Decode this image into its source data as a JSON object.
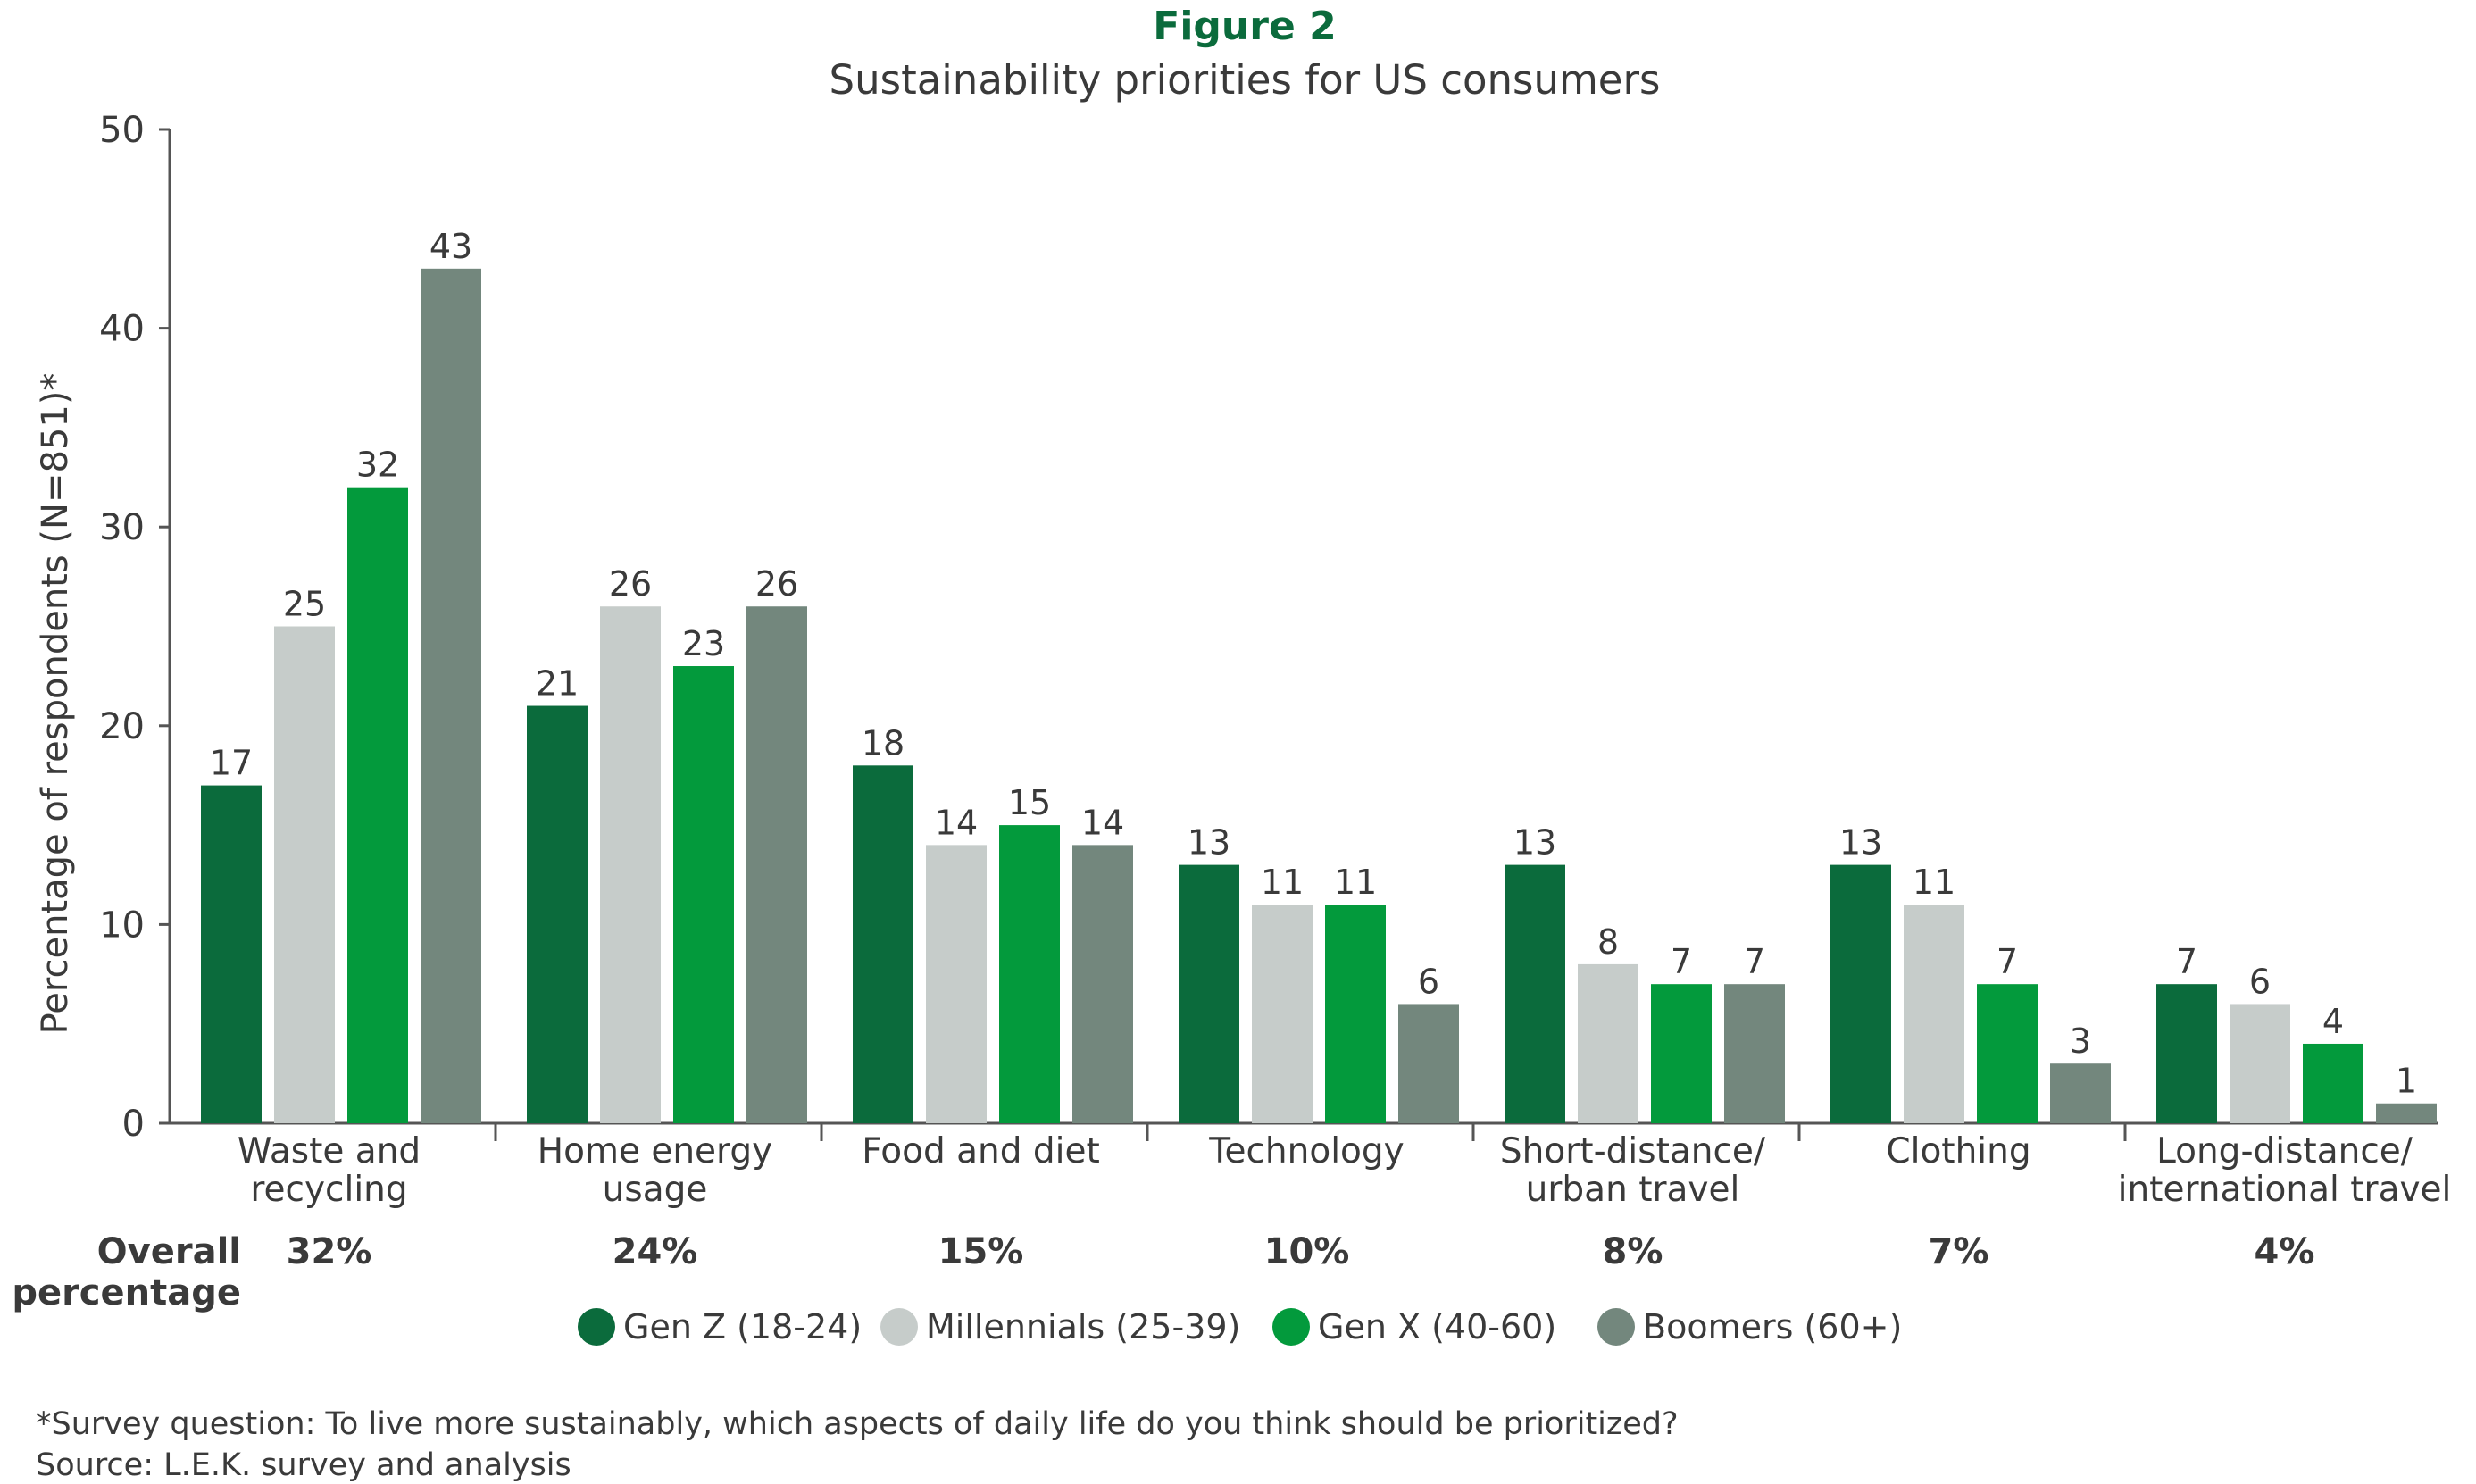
{
  "figure_label": "Figure 2",
  "overall_label_lines": [
    "Overall",
    "percentage"
  ],
  "footnote": "*Survey question: To live more sustainably, which aspects of daily life do you think should be prioritized?",
  "source": "Source: L.E.K. survey and analysis",
  "colors": {
    "gen_z": "#0b6b3c",
    "millennials": "#c6ccca",
    "gen_x": "#039a3c",
    "boomers": "#73877d",
    "axis": "#555555"
  },
  "chart_data": {
    "type": "bar",
    "title": "Sustainability priorities for US consumers",
    "ylabel": "Percentage of respondents (N=851)*",
    "ylim": [
      0,
      50
    ],
    "yticks": [
      0,
      10,
      20,
      30,
      40,
      50
    ],
    "categories": [
      [
        "Waste and",
        "recycling"
      ],
      [
        "Home energy",
        "usage"
      ],
      [
        "Food and diet"
      ],
      [
        "Technology"
      ],
      [
        "Short-distance/",
        "urban travel"
      ],
      [
        "Clothing"
      ],
      [
        "Long-distance/",
        "international travel"
      ]
    ],
    "overall_percentages": [
      "32%",
      "24%",
      "15%",
      "10%",
      "8%",
      "7%",
      "4%"
    ],
    "series": [
      {
        "name": "Gen Z (18-24)",
        "color_key": "gen_z",
        "values": [
          17,
          21,
          18,
          13,
          13,
          13,
          7
        ]
      },
      {
        "name": "Millennials (25-39)",
        "color_key": "millennials",
        "values": [
          25,
          26,
          14,
          11,
          8,
          11,
          6
        ]
      },
      {
        "name": "Gen X (40-60)",
        "color_key": "gen_x",
        "values": [
          32,
          23,
          15,
          11,
          7,
          7,
          4
        ]
      },
      {
        "name": "Boomers (60+)",
        "color_key": "boomers",
        "values": [
          43,
          26,
          14,
          6,
          7,
          3,
          1
        ]
      }
    ],
    "legend_position": "bottom",
    "grid": false
  }
}
